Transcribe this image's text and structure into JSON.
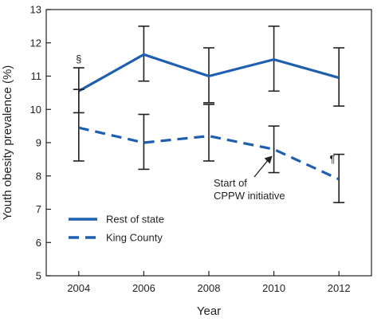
{
  "chart_data": {
    "type": "line",
    "xlabel": "Year",
    "ylabel": "Youth obesity prevalence (%)",
    "x": [
      2004,
      2006,
      2008,
      2010,
      2012
    ],
    "xlim": [
      2003.0,
      2013.0
    ],
    "ylim": [
      5,
      13
    ],
    "yticks": [
      5,
      6,
      7,
      8,
      9,
      10,
      11,
      12,
      13
    ],
    "grid": false,
    "legend_position": "bottom-left",
    "series": [
      {
        "name": "Rest of state",
        "style": "solid",
        "color": "#1f5fb0",
        "values": [
          10.55,
          11.65,
          11.0,
          11.5,
          10.95
        ],
        "ci_low": [
          9.9,
          10.85,
          10.2,
          10.55,
          10.1
        ],
        "ci_high": [
          11.25,
          12.5,
          11.85,
          12.5,
          11.85
        ]
      },
      {
        "name": "King County",
        "style": "dashed",
        "color": "#1f5fb0",
        "values": [
          9.45,
          9.0,
          9.2,
          8.8,
          7.9
        ],
        "ci_low": [
          8.45,
          8.2,
          8.45,
          8.1,
          7.2
        ],
        "ci_high": [
          10.6,
          9.85,
          10.15,
          9.5,
          8.65
        ]
      }
    ],
    "annotations": [
      {
        "text": "§",
        "x": 2004,
        "y": 11.5
      },
      {
        "text": "¶",
        "x": 2011.8,
        "y": 8.4
      }
    ],
    "callout": {
      "lines": [
        "Start of",
        "CPPW initiative"
      ],
      "arrow_target": {
        "x": 2010,
        "y": 8.75
      }
    }
  }
}
